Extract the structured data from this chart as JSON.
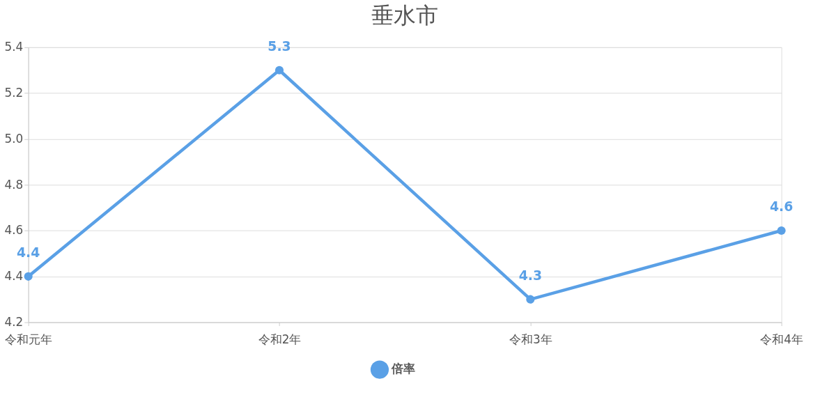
{
  "chart_data": {
    "type": "line",
    "title": "垂水市",
    "categories": [
      "令和元年",
      "令和2年",
      "令和3年",
      "令和4年"
    ],
    "series": [
      {
        "name": "倍率",
        "color": "#5aa0e6",
        "values": [
          4.4,
          5.3,
          4.3,
          4.6
        ]
      }
    ],
    "ylim": [
      4.2,
      5.4
    ],
    "yticks": [
      4.2,
      4.4,
      4.6,
      4.8,
      {
        "value": 5,
        "label": "5.0"
      },
      5.2,
      5.4
    ],
    "grid": "y",
    "legend": "bottom",
    "marker": "circle",
    "line_style": "solid",
    "data_labels": true
  }
}
